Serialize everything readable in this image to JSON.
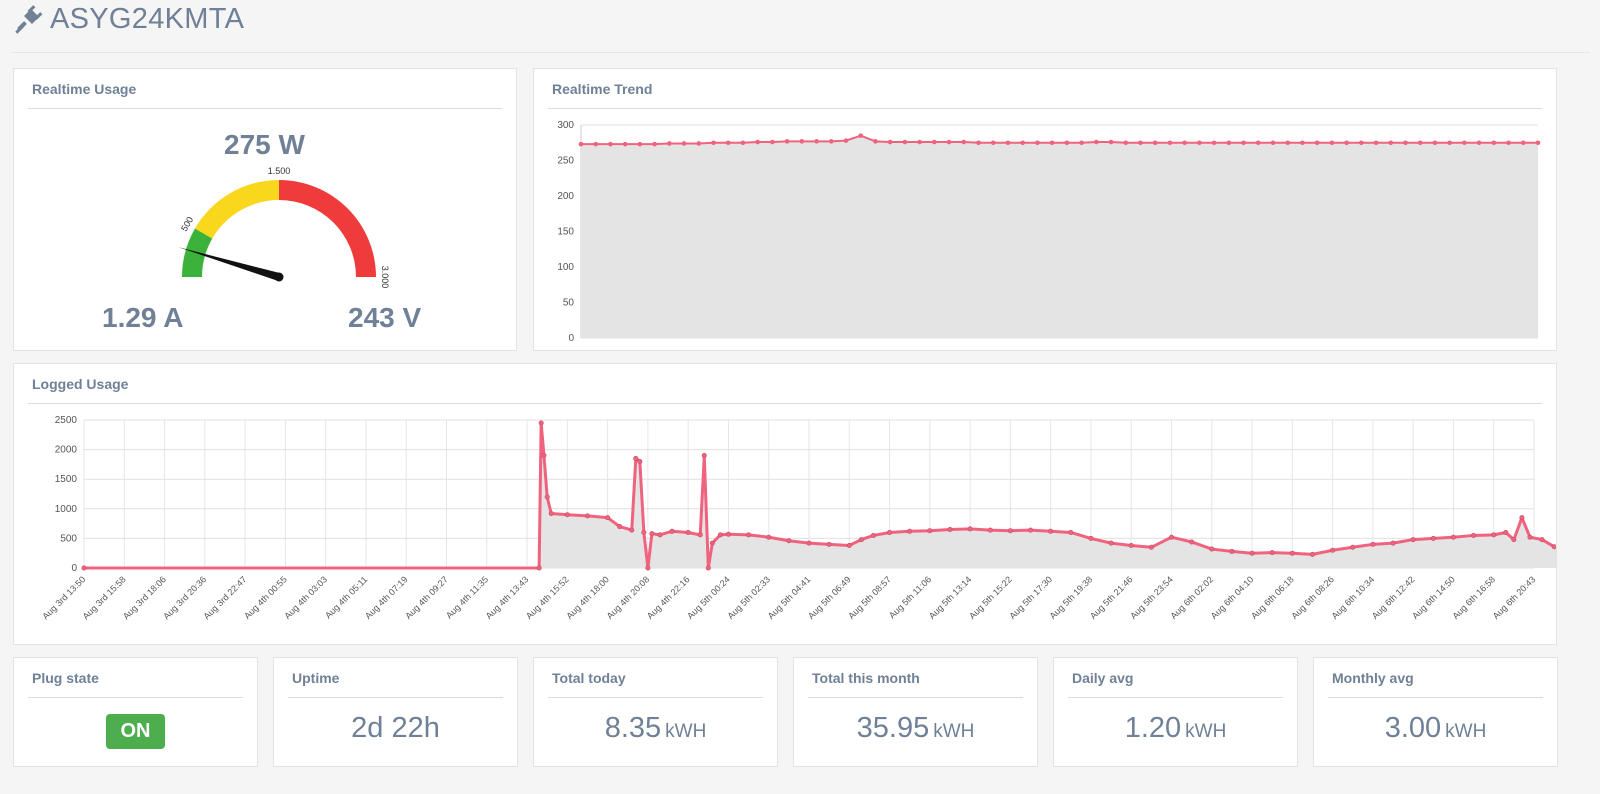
{
  "header": {
    "title": "ASYG24KMTA",
    "icon": "plug-icon"
  },
  "realtime_usage": {
    "title": "Realtime Usage",
    "power": "275 W",
    "current": "1.29 A",
    "voltage": "243 V",
    "gauge": {
      "value": 275,
      "max": 3000,
      "ticks": [
        "500",
        "1.500",
        "3.000"
      ],
      "bands": [
        {
          "from": 0,
          "to": 500,
          "color": "#3bb33b"
        },
        {
          "from": 500,
          "to": 1500,
          "color": "#f8d71c"
        },
        {
          "from": 1500,
          "to": 3000,
          "color": "#ef3b3b"
        }
      ]
    }
  },
  "realtime_trend": {
    "title": "Realtime Trend",
    "chart_data": {
      "type": "area",
      "ylim": [
        0,
        300
      ],
      "yticks": [
        0,
        50,
        100,
        150,
        200,
        250,
        300
      ],
      "values": [
        273,
        273,
        273,
        273,
        273,
        273,
        274,
        274,
        274,
        275,
        275,
        275,
        276,
        276,
        277,
        277,
        277,
        277,
        278,
        285,
        277,
        276,
        276,
        276,
        276,
        276,
        276,
        275,
        275,
        275,
        275,
        275,
        275,
        275,
        275,
        276,
        276,
        275,
        275,
        275,
        275,
        275,
        275,
        275,
        275,
        275,
        275,
        275,
        275,
        275,
        275,
        275,
        275,
        275,
        275,
        275,
        275,
        275,
        275,
        275,
        275,
        275,
        275,
        275,
        275,
        275
      ],
      "color": "#f0637e"
    }
  },
  "logged_usage": {
    "title": "Logged Usage",
    "chart_data": {
      "type": "area",
      "ylim": [
        0,
        2500
      ],
      "yticks": [
        0,
        500,
        1000,
        1500,
        2000,
        2500
      ],
      "categories": [
        "Aug 3rd 13:50",
        "Aug 3rd 15:58",
        "Aug 3rd 18:06",
        "Aug 3rd 20:36",
        "Aug 3rd 22:47",
        "Aug 4th 00:55",
        "Aug 4th 03:03",
        "Aug 4th 05:11",
        "Aug 4th 07:19",
        "Aug 4th 09:27",
        "Aug 4th 11:35",
        "Aug 4th 13:43",
        "Aug 4th 15:52",
        "Aug 4th 18:00",
        "Aug 4th 20:08",
        "Aug 4th 22:16",
        "Aug 5th 00:24",
        "Aug 5th 02:33",
        "Aug 5th 04:41",
        "Aug 5th 06:49",
        "Aug 5th 08:57",
        "Aug 5th 11:06",
        "Aug 5th 13:14",
        "Aug 5th 15:22",
        "Aug 5th 17:30",
        "Aug 5th 19:38",
        "Aug 5th 21:46",
        "Aug 5th 23:54",
        "Aug 6th 02:02",
        "Aug 6th 04:10",
        "Aug 6th 06:18",
        "Aug 6th 08:26",
        "Aug 6th 10:34",
        "Aug 6th 12:42",
        "Aug 6th 14:50",
        "Aug 6th 16:58",
        "Aug 6th 20:43"
      ],
      "series_points": [
        [
          0,
          0
        ],
        [
          11.3,
          0
        ],
        [
          11.35,
          2450
        ],
        [
          11.42,
          1900
        ],
        [
          11.5,
          1200
        ],
        [
          11.6,
          920
        ],
        [
          12.0,
          900
        ],
        [
          12.5,
          880
        ],
        [
          13.0,
          850
        ],
        [
          13.3,
          700
        ],
        [
          13.6,
          640
        ],
        [
          13.7,
          1850
        ],
        [
          13.8,
          1800
        ],
        [
          13.9,
          600
        ],
        [
          14.0,
          0
        ],
        [
          14.1,
          580
        ],
        [
          14.3,
          560
        ],
        [
          14.6,
          620
        ],
        [
          15.0,
          600
        ],
        [
          15.3,
          560
        ],
        [
          15.4,
          1900
        ],
        [
          15.5,
          0
        ],
        [
          15.6,
          420
        ],
        [
          15.8,
          560
        ],
        [
          16.0,
          570
        ],
        [
          16.5,
          560
        ],
        [
          17.0,
          520
        ],
        [
          17.5,
          460
        ],
        [
          18.0,
          420
        ],
        [
          18.5,
          400
        ],
        [
          19.0,
          380
        ],
        [
          19.3,
          480
        ],
        [
          19.6,
          550
        ],
        [
          20.0,
          600
        ],
        [
          20.5,
          620
        ],
        [
          21.0,
          630
        ],
        [
          21.5,
          650
        ],
        [
          22.0,
          660
        ],
        [
          22.5,
          640
        ],
        [
          23.0,
          630
        ],
        [
          23.5,
          640
        ],
        [
          24.0,
          620
        ],
        [
          24.5,
          600
        ],
        [
          25.0,
          500
        ],
        [
          25.5,
          420
        ],
        [
          26.0,
          380
        ],
        [
          26.5,
          350
        ],
        [
          27.0,
          520
        ],
        [
          27.5,
          440
        ],
        [
          28.0,
          320
        ],
        [
          28.5,
          280
        ],
        [
          29.0,
          250
        ],
        [
          29.5,
          260
        ],
        [
          30.0,
          250
        ],
        [
          30.5,
          230
        ],
        [
          31.0,
          300
        ],
        [
          31.5,
          350
        ],
        [
          32.0,
          400
        ],
        [
          32.5,
          420
        ],
        [
          33.0,
          480
        ],
        [
          33.5,
          500
        ],
        [
          34.0,
          520
        ],
        [
          34.5,
          550
        ],
        [
          35.0,
          560
        ],
        [
          35.3,
          600
        ],
        [
          35.5,
          480
        ],
        [
          35.7,
          850
        ],
        [
          35.9,
          520
        ],
        [
          36.2,
          480
        ],
        [
          36.5,
          360
        ],
        [
          36.8,
          330
        ],
        [
          36.95,
          250
        ]
      ],
      "color": "#f0637e"
    }
  },
  "stats": [
    {
      "title": "Plug state",
      "value": "ON"
    },
    {
      "title": "Uptime",
      "value": "2d 22h"
    },
    {
      "title": "Total today",
      "value": "8.35",
      "unit": "kWH"
    },
    {
      "title": "Total this month",
      "value": "35.95",
      "unit": "kWH"
    },
    {
      "title": "Daily avg",
      "value": "1.20",
      "unit": "kWH"
    },
    {
      "title": "Monthly avg",
      "value": "3.00",
      "unit": "kWH"
    }
  ]
}
